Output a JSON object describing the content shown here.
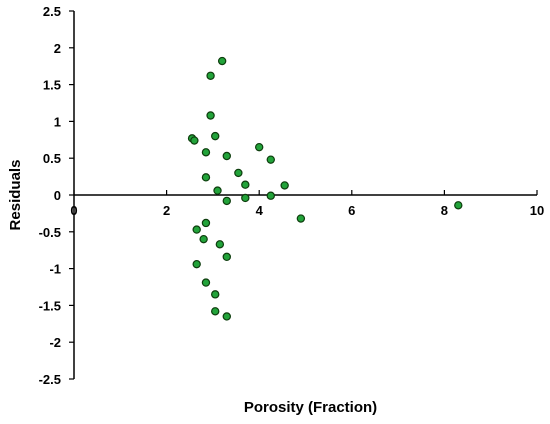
{
  "chart_data": {
    "type": "scatter",
    "title": "",
    "xlabel": "Porosity (Fraction)",
    "ylabel": "Residuals",
    "xlim": [
      0,
      10
    ],
    "ylim": [
      -2.5,
      2.5
    ],
    "x_ticks": [
      "0",
      "2",
      "4",
      "6",
      "8",
      "10"
    ],
    "y_ticks": [
      "2.5",
      "2",
      "1.5",
      "1",
      "0.5",
      "0",
      "-0.5",
      "-1",
      "-1.5",
      "-2",
      "-2.5"
    ],
    "grid": false,
    "legend": "none",
    "point_fill": "#22a33a",
    "point_stroke": "#0d3d0d",
    "series": [
      {
        "points": [
          {
            "x": 3.2,
            "y": 1.82
          },
          {
            "x": 2.95,
            "y": 1.62
          },
          {
            "x": 2.95,
            "y": 1.08
          },
          {
            "x": 3.05,
            "y": 0.8
          },
          {
            "x": 2.55,
            "y": 0.77
          },
          {
            "x": 2.6,
            "y": 0.74
          },
          {
            "x": 4.0,
            "y": 0.65
          },
          {
            "x": 2.85,
            "y": 0.58
          },
          {
            "x": 3.3,
            "y": 0.53
          },
          {
            "x": 4.25,
            "y": 0.48
          },
          {
            "x": 3.55,
            "y": 0.3
          },
          {
            "x": 2.85,
            "y": 0.24
          },
          {
            "x": 3.7,
            "y": 0.14
          },
          {
            "x": 4.55,
            "y": 0.13
          },
          {
            "x": 3.1,
            "y": 0.06
          },
          {
            "x": 4.25,
            "y": -0.01
          },
          {
            "x": 3.7,
            "y": -0.04
          },
          {
            "x": 3.3,
            "y": -0.08
          },
          {
            "x": 8.3,
            "y": -0.14
          },
          {
            "x": 4.9,
            "y": -0.32
          },
          {
            "x": 2.85,
            "y": -0.38
          },
          {
            "x": 2.65,
            "y": -0.47
          },
          {
            "x": 2.8,
            "y": -0.6
          },
          {
            "x": 3.15,
            "y": -0.67
          },
          {
            "x": 3.3,
            "y": -0.84
          },
          {
            "x": 2.65,
            "y": -0.94
          },
          {
            "x": 2.85,
            "y": -1.19
          },
          {
            "x": 3.05,
            "y": -1.35
          },
          {
            "x": 3.05,
            "y": -1.58
          },
          {
            "x": 3.3,
            "y": -1.65
          }
        ]
      }
    ]
  }
}
